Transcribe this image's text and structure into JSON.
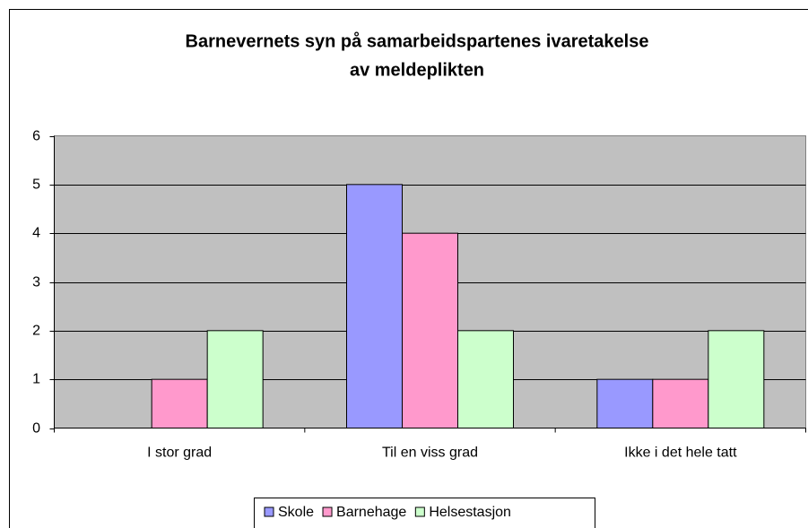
{
  "chart_data": {
    "type": "bar",
    "title": "Barnevernets syn på samarbeidspartenes ivaretakelse",
    "subtitle": "av meldeplikten",
    "categories": [
      "I stor grad",
      "Til en viss grad",
      "Ikke i det hele tatt"
    ],
    "series": [
      {
        "name": "Skole",
        "color": "#9999ff",
        "values": [
          0,
          5,
          1
        ]
      },
      {
        "name": "Barnehage",
        "color": "#ff99cc",
        "values": [
          1,
          4,
          1
        ]
      },
      {
        "name": "Helsestasjon",
        "color": "#ccffcc",
        "values": [
          2,
          2,
          2
        ]
      }
    ],
    "ylim": [
      0,
      6
    ],
    "yticks": [
      0,
      1,
      2,
      3,
      4,
      5,
      6
    ],
    "grid": true,
    "legend": "bottom"
  }
}
